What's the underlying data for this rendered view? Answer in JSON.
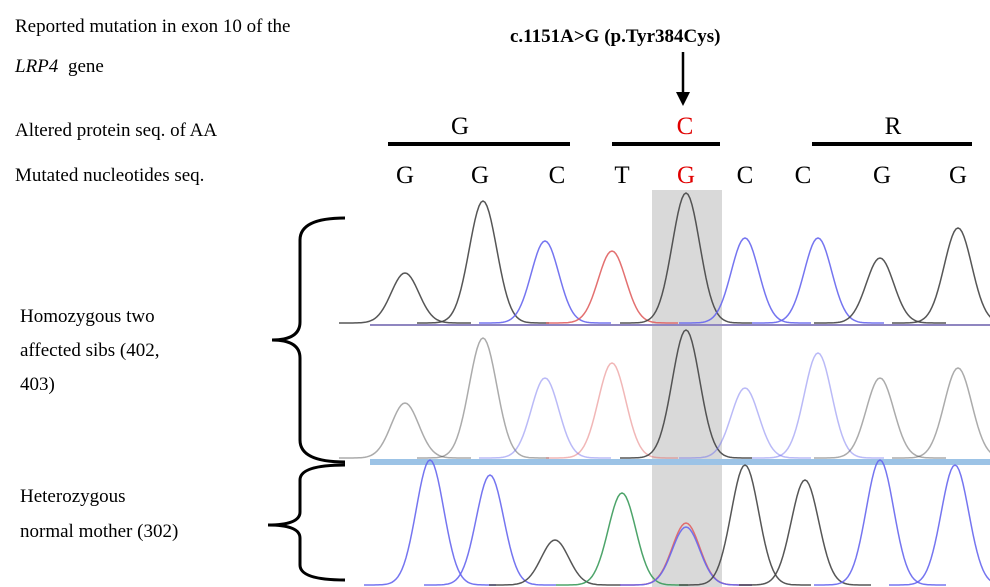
{
  "header": {
    "text": "Reported mutation in exon 10 of the",
    "gene": "LRP4",
    "suffix": "gene"
  },
  "mutation": "c.1151A>G (p.Tyr384Cys)",
  "rows": {
    "protein_label": "Altered protein seq. of AA",
    "nucleotide_label": "Mutated nucleotides seq."
  },
  "amino_acids": [
    "G",
    "C",
    "R"
  ],
  "nucleotides": [
    "G",
    "G",
    "C",
    "T",
    "G",
    "C",
    "C",
    "G",
    "G"
  ],
  "groups": [
    {
      "lines": [
        "Homozygous two",
        "affected sibs (402,",
        "403)"
      ]
    },
    {
      "lines": [
        "Heterozygous",
        "normal mother (302)"
      ]
    }
  ]
}
